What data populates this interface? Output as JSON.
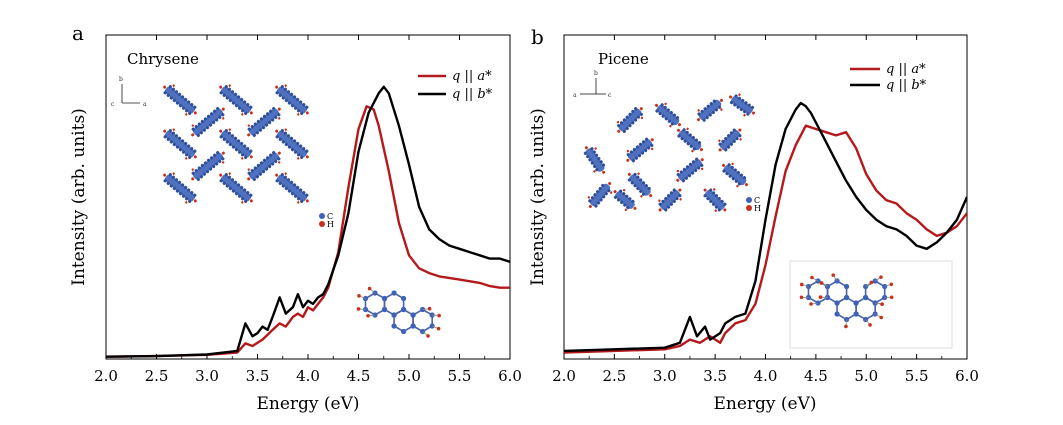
{
  "figure": {
    "panel_a_label": "a",
    "panel_b_label": "b"
  },
  "colors": {
    "red": "#b5191b",
    "black": "#000000",
    "atom_c": "#3d62b8",
    "atom_h": "#c8321d"
  },
  "chart_data": [
    {
      "type": "line",
      "panel": "a",
      "title": "Chrysene",
      "xlabel": "Energy  (eV)",
      "ylabel": "Intensity  (arb. units)",
      "xlim": [
        2.0,
        6.0
      ],
      "ylim": [
        0,
        1.0
      ],
      "x_ticks": [
        "2.0",
        "2.5",
        "3.0",
        "3.5",
        "4.0",
        "4.5",
        "5.0",
        "5.5",
        "6.0"
      ],
      "legend_position": "top-right",
      "inset_atom_labels": [
        "C",
        "H"
      ],
      "series": [
        {
          "name": "q || a*",
          "color": "#b5191b",
          "x": [
            2.0,
            2.5,
            3.0,
            3.3,
            3.38,
            3.45,
            3.5,
            3.55,
            3.6,
            3.65,
            3.72,
            3.78,
            3.85,
            3.9,
            3.95,
            4.0,
            4.05,
            4.1,
            4.15,
            4.2,
            4.3,
            4.4,
            4.5,
            4.58,
            4.65,
            4.7,
            4.8,
            4.9,
            5.0,
            5.1,
            5.2,
            5.3,
            5.5,
            5.7,
            5.8,
            5.9,
            6.0
          ],
          "y": [
            0.007,
            0.009,
            0.013,
            0.02,
            0.048,
            0.04,
            0.05,
            0.06,
            0.075,
            0.09,
            0.11,
            0.1,
            0.13,
            0.14,
            0.13,
            0.16,
            0.15,
            0.17,
            0.19,
            0.22,
            0.33,
            0.53,
            0.71,
            0.78,
            0.77,
            0.72,
            0.58,
            0.42,
            0.32,
            0.28,
            0.265,
            0.255,
            0.245,
            0.235,
            0.225,
            0.22,
            0.22
          ]
        },
        {
          "name": "q || b*",
          "color": "#000000",
          "x": [
            2.0,
            2.5,
            3.0,
            3.3,
            3.38,
            3.45,
            3.5,
            3.55,
            3.6,
            3.65,
            3.72,
            3.78,
            3.85,
            3.9,
            3.95,
            4.0,
            4.05,
            4.1,
            4.15,
            4.2,
            4.3,
            4.4,
            4.5,
            4.6,
            4.7,
            4.75,
            4.8,
            4.9,
            5.0,
            5.1,
            5.2,
            5.3,
            5.4,
            5.5,
            5.6,
            5.7,
            5.8,
            5.9,
            6.0
          ],
          "y": [
            0.007,
            0.009,
            0.014,
            0.025,
            0.11,
            0.07,
            0.08,
            0.1,
            0.09,
            0.13,
            0.19,
            0.14,
            0.16,
            0.2,
            0.16,
            0.18,
            0.17,
            0.19,
            0.2,
            0.23,
            0.32,
            0.45,
            0.64,
            0.76,
            0.82,
            0.84,
            0.82,
            0.72,
            0.6,
            0.47,
            0.4,
            0.37,
            0.35,
            0.34,
            0.33,
            0.32,
            0.31,
            0.31,
            0.3
          ]
        }
      ]
    },
    {
      "type": "line",
      "panel": "b",
      "title": "Picene",
      "xlabel": "Energy  (eV)",
      "ylabel": "Intensity  (arb. units)",
      "xlim": [
        2.0,
        6.0
      ],
      "ylim": [
        0,
        1.0
      ],
      "x_ticks": [
        "2.0",
        "2.5",
        "3.0",
        "3.5",
        "4.0",
        "4.5",
        "5.0",
        "5.5",
        "6.0"
      ],
      "legend_position": "top-right",
      "inset_atom_labels": [
        "C",
        "H"
      ],
      "series": [
        {
          "name": "q || a*",
          "color": "#b5191b",
          "x": [
            2.0,
            2.5,
            3.0,
            3.15,
            3.25,
            3.35,
            3.45,
            3.55,
            3.6,
            3.7,
            3.8,
            3.9,
            4.0,
            4.1,
            4.2,
            4.3,
            4.4,
            4.5,
            4.6,
            4.7,
            4.8,
            4.9,
            5.0,
            5.1,
            5.2,
            5.3,
            5.4,
            5.5,
            5.6,
            5.7,
            5.8,
            5.9,
            6.0
          ],
          "y": [
            0.02,
            0.025,
            0.03,
            0.04,
            0.06,
            0.05,
            0.07,
            0.05,
            0.08,
            0.11,
            0.12,
            0.17,
            0.29,
            0.44,
            0.58,
            0.66,
            0.72,
            0.71,
            0.7,
            0.69,
            0.7,
            0.65,
            0.57,
            0.52,
            0.49,
            0.48,
            0.45,
            0.43,
            0.4,
            0.38,
            0.39,
            0.41,
            0.45
          ]
        },
        {
          "name": "q || b*",
          "color": "#000000",
          "x": [
            2.0,
            2.5,
            3.0,
            3.15,
            3.25,
            3.32,
            3.4,
            3.45,
            3.55,
            3.6,
            3.7,
            3.8,
            3.9,
            4.0,
            4.1,
            4.2,
            4.3,
            4.35,
            4.4,
            4.45,
            4.5,
            4.6,
            4.7,
            4.8,
            4.9,
            5.0,
            5.1,
            5.2,
            5.3,
            5.4,
            5.5,
            5.6,
            5.7,
            5.8,
            5.9,
            6.0
          ],
          "y": [
            0.025,
            0.03,
            0.035,
            0.05,
            0.13,
            0.07,
            0.1,
            0.06,
            0.08,
            0.11,
            0.13,
            0.14,
            0.24,
            0.43,
            0.6,
            0.71,
            0.77,
            0.79,
            0.78,
            0.76,
            0.73,
            0.67,
            0.61,
            0.55,
            0.5,
            0.46,
            0.43,
            0.41,
            0.4,
            0.38,
            0.35,
            0.34,
            0.36,
            0.39,
            0.43,
            0.5
          ]
        }
      ]
    }
  ]
}
